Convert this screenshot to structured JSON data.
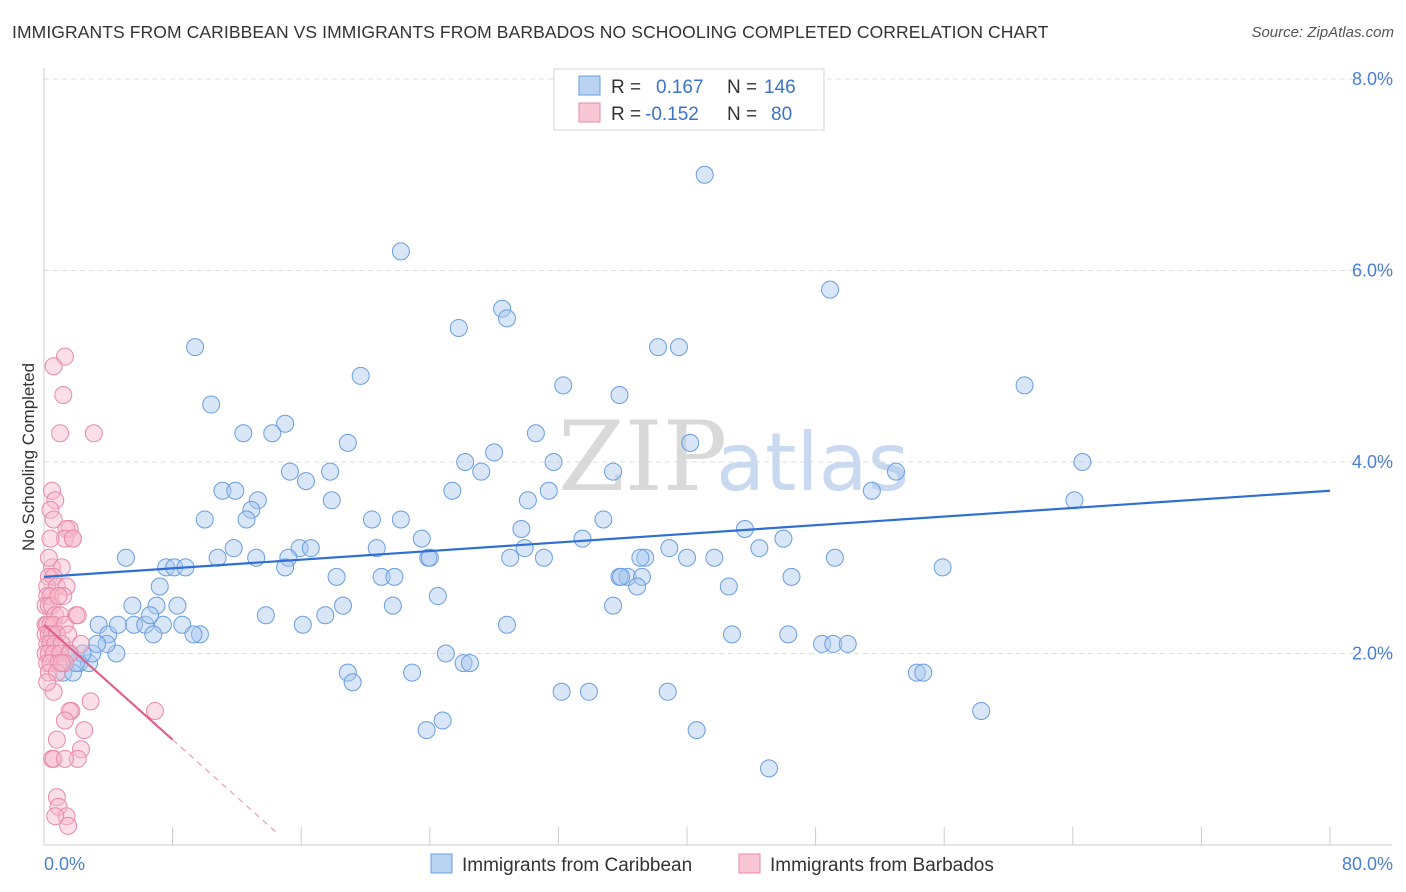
{
  "title": "IMMIGRANTS FROM CARIBBEAN VS IMMIGRANTS FROM BARBADOS NO SCHOOLING COMPLETED CORRELATION CHART",
  "source": "Source: ZipAtlas.com",
  "watermark": {
    "zip": "ZIP",
    "atlas": "atlas"
  },
  "legend": {
    "rows": [
      {
        "r_label": "R =",
        "r_value": "0.167",
        "n_label": "N =",
        "n_value": "146",
        "color": "#a9c8f0",
        "stroke": "#6a9ee0"
      },
      {
        "r_label": "R =",
        "r_value": "-0.152",
        "n_label": "N =",
        "n_value": "80",
        "color": "#f7b8cc",
        "stroke": "#e88aa6"
      }
    ]
  },
  "bottom_legend": [
    {
      "label": "Immigrants from Caribbean",
      "color": "#a9c8f0",
      "stroke": "#6a9ee0"
    },
    {
      "label": "Immigrants from Barbados",
      "color": "#f7b8cc",
      "stroke": "#e88aa6"
    }
  ],
  "chart_data": {
    "type": "scatter",
    "title": "IMMIGRANTS FROM CARIBBEAN VS IMMIGRANTS FROM BARBADOS NO SCHOOLING COMPLETED CORRELATION CHART",
    "xlabel": "",
    "ylabel": "No Schooling Completed",
    "xlim": [
      0,
      80
    ],
    "ylim": [
      0,
      8
    ],
    "x_tick_labels": [
      "0.0%",
      "80.0%"
    ],
    "y_tick_labels": [
      "2.0%",
      "4.0%",
      "6.0%",
      "8.0%"
    ],
    "y_ticks": [
      2,
      4,
      6,
      8
    ],
    "series": [
      {
        "name": "Immigrants from Caribbean",
        "color": "#6a9ee0",
        "fill": "#a9c8f0",
        "trend": {
          "x0": 0,
          "y0": 2.8,
          "x1": 80,
          "y1": 3.7,
          "color": "#2f6fd1"
        },
        "points": [
          [
            41.1,
            7.0
          ],
          [
            22.2,
            6.2
          ],
          [
            48.9,
            5.8
          ],
          [
            28.5,
            5.6
          ],
          [
            28.8,
            5.5
          ],
          [
            25.8,
            5.4
          ],
          [
            9.4,
            5.2
          ],
          [
            38.2,
            5.2
          ],
          [
            39.5,
            5.2
          ],
          [
            19.7,
            4.9
          ],
          [
            32.3,
            4.8
          ],
          [
            35.8,
            4.7
          ],
          [
            61.0,
            4.8
          ],
          [
            10.4,
            4.6
          ],
          [
            15.0,
            4.4
          ],
          [
            12.4,
            4.3
          ],
          [
            14.2,
            4.3
          ],
          [
            18.9,
            4.2
          ],
          [
            30.6,
            4.3
          ],
          [
            40.2,
            4.2
          ],
          [
            28.0,
            4.1
          ],
          [
            31.7,
            4.0
          ],
          [
            26.2,
            4.0
          ],
          [
            64.6,
            4.0
          ],
          [
            15.3,
            3.9
          ],
          [
            17.8,
            3.9
          ],
          [
            27.2,
            3.9
          ],
          [
            35.4,
            3.9
          ],
          [
            53.0,
            3.9
          ],
          [
            16.3,
            3.8
          ],
          [
            11.1,
            3.7
          ],
          [
            11.9,
            3.7
          ],
          [
            25.4,
            3.7
          ],
          [
            31.4,
            3.7
          ],
          [
            51.5,
            3.7
          ],
          [
            13.3,
            3.6
          ],
          [
            17.9,
            3.6
          ],
          [
            30.1,
            3.6
          ],
          [
            64.1,
            3.6
          ],
          [
            12.9,
            3.5
          ],
          [
            10.0,
            3.4
          ],
          [
            12.6,
            3.4
          ],
          [
            20.4,
            3.4
          ],
          [
            22.2,
            3.4
          ],
          [
            29.7,
            3.3
          ],
          [
            34.8,
            3.4
          ],
          [
            43.6,
            3.3
          ],
          [
            23.5,
            3.2
          ],
          [
            33.5,
            3.2
          ],
          [
            46.0,
            3.2
          ],
          [
            11.8,
            3.1
          ],
          [
            15.9,
            3.1
          ],
          [
            16.6,
            3.1
          ],
          [
            20.7,
            3.1
          ],
          [
            29.0,
            3.0
          ],
          [
            31.1,
            3.0
          ],
          [
            38.9,
            3.1
          ],
          [
            44.5,
            3.1
          ],
          [
            5.1,
            3.0
          ],
          [
            10.8,
            3.0
          ],
          [
            23.9,
            3.0
          ],
          [
            24.0,
            3.0
          ],
          [
            15.2,
            3.0
          ],
          [
            37.4,
            3.0
          ],
          [
            40.0,
            3.0
          ],
          [
            41.7,
            3.0
          ],
          [
            49.2,
            3.0
          ],
          [
            7.6,
            2.9
          ],
          [
            8.1,
            2.9
          ],
          [
            8.8,
            2.9
          ],
          [
            18.2,
            2.8
          ],
          [
            21.0,
            2.8
          ],
          [
            35.8,
            2.8
          ],
          [
            36.3,
            2.8
          ],
          [
            37.2,
            2.8
          ],
          [
            46.5,
            2.8
          ],
          [
            35.9,
            2.8
          ],
          [
            7.2,
            2.7
          ],
          [
            21.8,
            2.8
          ],
          [
            36.9,
            2.7
          ],
          [
            42.6,
            2.7
          ],
          [
            55.9,
            2.9
          ],
          [
            15.0,
            2.9
          ],
          [
            7.0,
            2.5
          ],
          [
            8.3,
            2.5
          ],
          [
            5.5,
            2.5
          ],
          [
            18.6,
            2.5
          ],
          [
            24.5,
            2.6
          ],
          [
            35.4,
            2.5
          ],
          [
            3.4,
            2.3
          ],
          [
            4.0,
            2.2
          ],
          [
            4.6,
            2.3
          ],
          [
            5.6,
            2.3
          ],
          [
            6.3,
            2.3
          ],
          [
            7.4,
            2.3
          ],
          [
            8.6,
            2.3
          ],
          [
            13.8,
            2.4
          ],
          [
            17.5,
            2.4
          ],
          [
            21.7,
            2.5
          ],
          [
            28.8,
            2.3
          ],
          [
            42.8,
            2.2
          ],
          [
            46.3,
            2.2
          ],
          [
            6.8,
            2.2
          ],
          [
            9.7,
            2.2
          ],
          [
            48.4,
            2.1
          ],
          [
            49.1,
            2.1
          ],
          [
            50.0,
            2.1
          ],
          [
            4.5,
            2.0
          ],
          [
            1.5,
            2.0
          ],
          [
            2.2,
            1.9
          ],
          [
            2.8,
            1.9
          ],
          [
            26.1,
            1.9
          ],
          [
            26.5,
            1.9
          ],
          [
            3.9,
            2.1
          ],
          [
            3.0,
            2.0
          ],
          [
            18.9,
            1.8
          ],
          [
            22.9,
            1.8
          ],
          [
            19.2,
            1.7
          ],
          [
            54.3,
            1.8
          ],
          [
            54.7,
            1.8
          ],
          [
            1.2,
            1.8
          ],
          [
            1.8,
            1.8
          ],
          [
            33.9,
            1.6
          ],
          [
            38.8,
            1.6
          ],
          [
            58.3,
            1.4
          ],
          [
            24.8,
            1.3
          ],
          [
            40.6,
            1.2
          ],
          [
            23.8,
            1.2
          ],
          [
            45.1,
            0.8
          ],
          [
            37.1,
            3.0
          ],
          [
            25.0,
            2.0
          ],
          [
            2.4,
            2.0
          ],
          [
            9.3,
            2.2
          ],
          [
            2.0,
            1.9
          ],
          [
            13.2,
            3.0
          ],
          [
            6.6,
            2.4
          ],
          [
            16.1,
            2.3
          ],
          [
            32.2,
            1.6
          ],
          [
            1.6,
            2.0
          ],
          [
            3.3,
            2.1
          ],
          [
            29.9,
            3.1
          ]
        ]
      },
      {
        "name": "Immigrants from Barbados",
        "color": "#e88aa6",
        "fill": "#f7b8cc",
        "trend": {
          "x0": 0,
          "y0": 2.3,
          "x1": 8,
          "y1": 1.1,
          "color": "#e0608c",
          "dash_to_x": 14.5
        },
        "points": [
          [
            1.3,
            5.1
          ],
          [
            0.6,
            5.0
          ],
          [
            1.2,
            4.7
          ],
          [
            1.0,
            4.3
          ],
          [
            3.1,
            4.3
          ],
          [
            0.5,
            3.7
          ],
          [
            0.7,
            3.6
          ],
          [
            0.4,
            3.5
          ],
          [
            0.6,
            3.4
          ],
          [
            1.6,
            3.3
          ],
          [
            1.4,
            3.3
          ],
          [
            1.3,
            3.2
          ],
          [
            1.8,
            3.2
          ],
          [
            0.4,
            3.2
          ],
          [
            0.5,
            2.9
          ],
          [
            1.1,
            2.9
          ],
          [
            0.3,
            2.8
          ],
          [
            0.6,
            2.8
          ],
          [
            0.2,
            2.7
          ],
          [
            0.8,
            2.7
          ],
          [
            1.4,
            2.7
          ],
          [
            0.2,
            2.6
          ],
          [
            0.4,
            2.6
          ],
          [
            1.2,
            2.6
          ],
          [
            0.1,
            2.5
          ],
          [
            0.3,
            2.5
          ],
          [
            0.5,
            2.5
          ],
          [
            0.7,
            2.4
          ],
          [
            1.0,
            2.4
          ],
          [
            2.0,
            2.4
          ],
          [
            0.1,
            2.3
          ],
          [
            0.2,
            2.3
          ],
          [
            0.4,
            2.3
          ],
          [
            0.6,
            2.3
          ],
          [
            1.3,
            2.3
          ],
          [
            0.1,
            2.2
          ],
          [
            0.3,
            2.2
          ],
          [
            0.5,
            2.2
          ],
          [
            0.8,
            2.2
          ],
          [
            1.5,
            2.2
          ],
          [
            0.2,
            2.1
          ],
          [
            0.4,
            2.1
          ],
          [
            0.7,
            2.1
          ],
          [
            1.1,
            2.1
          ],
          [
            2.3,
            2.1
          ],
          [
            0.1,
            2.0
          ],
          [
            0.3,
            2.0
          ],
          [
            0.6,
            2.0
          ],
          [
            1.0,
            2.0
          ],
          [
            1.6,
            2.0
          ],
          [
            0.2,
            1.9
          ],
          [
            0.4,
            1.9
          ],
          [
            0.9,
            1.9
          ],
          [
            1.3,
            1.9
          ],
          [
            0.3,
            1.8
          ],
          [
            0.8,
            1.8
          ],
          [
            2.9,
            1.5
          ],
          [
            1.7,
            1.4
          ],
          [
            1.6,
            1.4
          ],
          [
            6.9,
            1.4
          ],
          [
            1.3,
            1.3
          ],
          [
            2.5,
            1.2
          ],
          [
            0.8,
            1.1
          ],
          [
            0.5,
            0.9
          ],
          [
            0.6,
            0.9
          ],
          [
            2.3,
            1.0
          ],
          [
            2.1,
            0.9
          ],
          [
            1.3,
            0.9
          ],
          [
            0.8,
            0.5
          ],
          [
            0.9,
            0.4
          ],
          [
            1.4,
            0.3
          ],
          [
            0.7,
            0.3
          ],
          [
            1.5,
            0.2
          ],
          [
            0.6,
            1.6
          ],
          [
            1.1,
            1.9
          ],
          [
            0.2,
            1.7
          ],
          [
            2.1,
            2.4
          ],
          [
            0.9,
            2.6
          ],
          [
            1.8,
            3.2
          ],
          [
            0.3,
            3.0
          ]
        ]
      }
    ]
  }
}
